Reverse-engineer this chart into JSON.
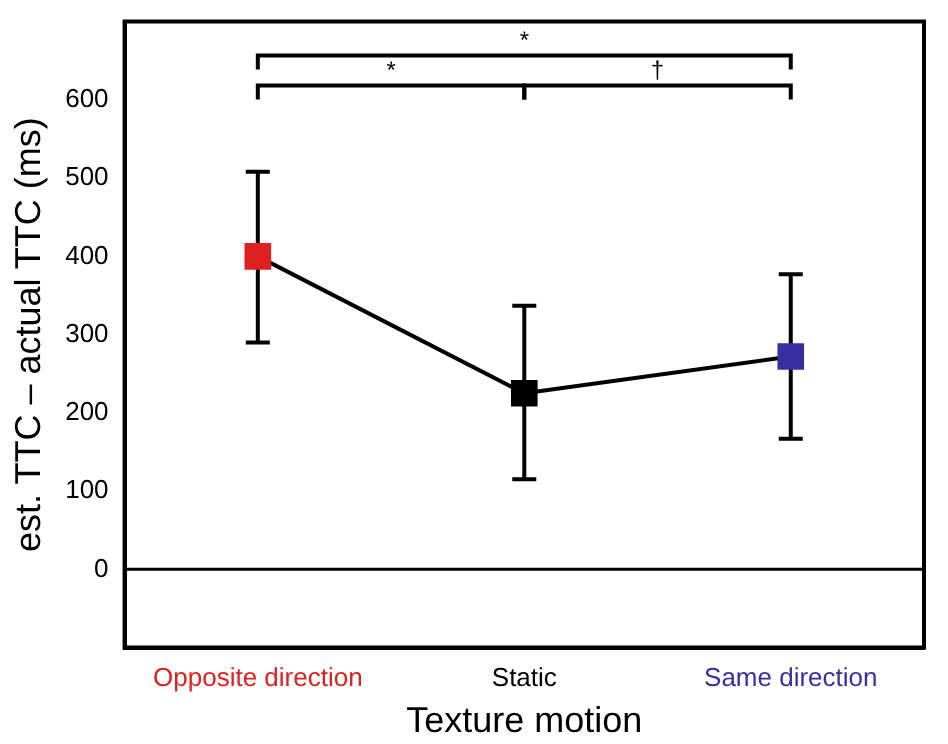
{
  "chart_data": {
    "type": "line",
    "xlabel": "Texture motion",
    "ylabel": "est. TTC – actual TTC (ms)",
    "categories": [
      "Opposite direction",
      "Static",
      "Same direction"
    ],
    "series": [
      {
        "color": "#000000",
        "colors": [
          "#e02020",
          "#000000",
          "#3a2fa0"
        ],
        "values": [
          400,
          225,
          272
        ],
        "errors": [
          [
            290,
            508
          ],
          [
            115,
            337
          ],
          [
            167,
            377
          ]
        ]
      }
    ],
    "marker": "square",
    "ylim": [
      -100,
      700
    ],
    "yticks": [
      0,
      100,
      200,
      300,
      400,
      500,
      600
    ],
    "ref_lines": [
      {
        "axis": "y",
        "value": 0,
        "color": "#000000"
      }
    ],
    "annotations": [
      "*",
      "*",
      "†"
    ],
    "grid": false,
    "legend": false
  }
}
